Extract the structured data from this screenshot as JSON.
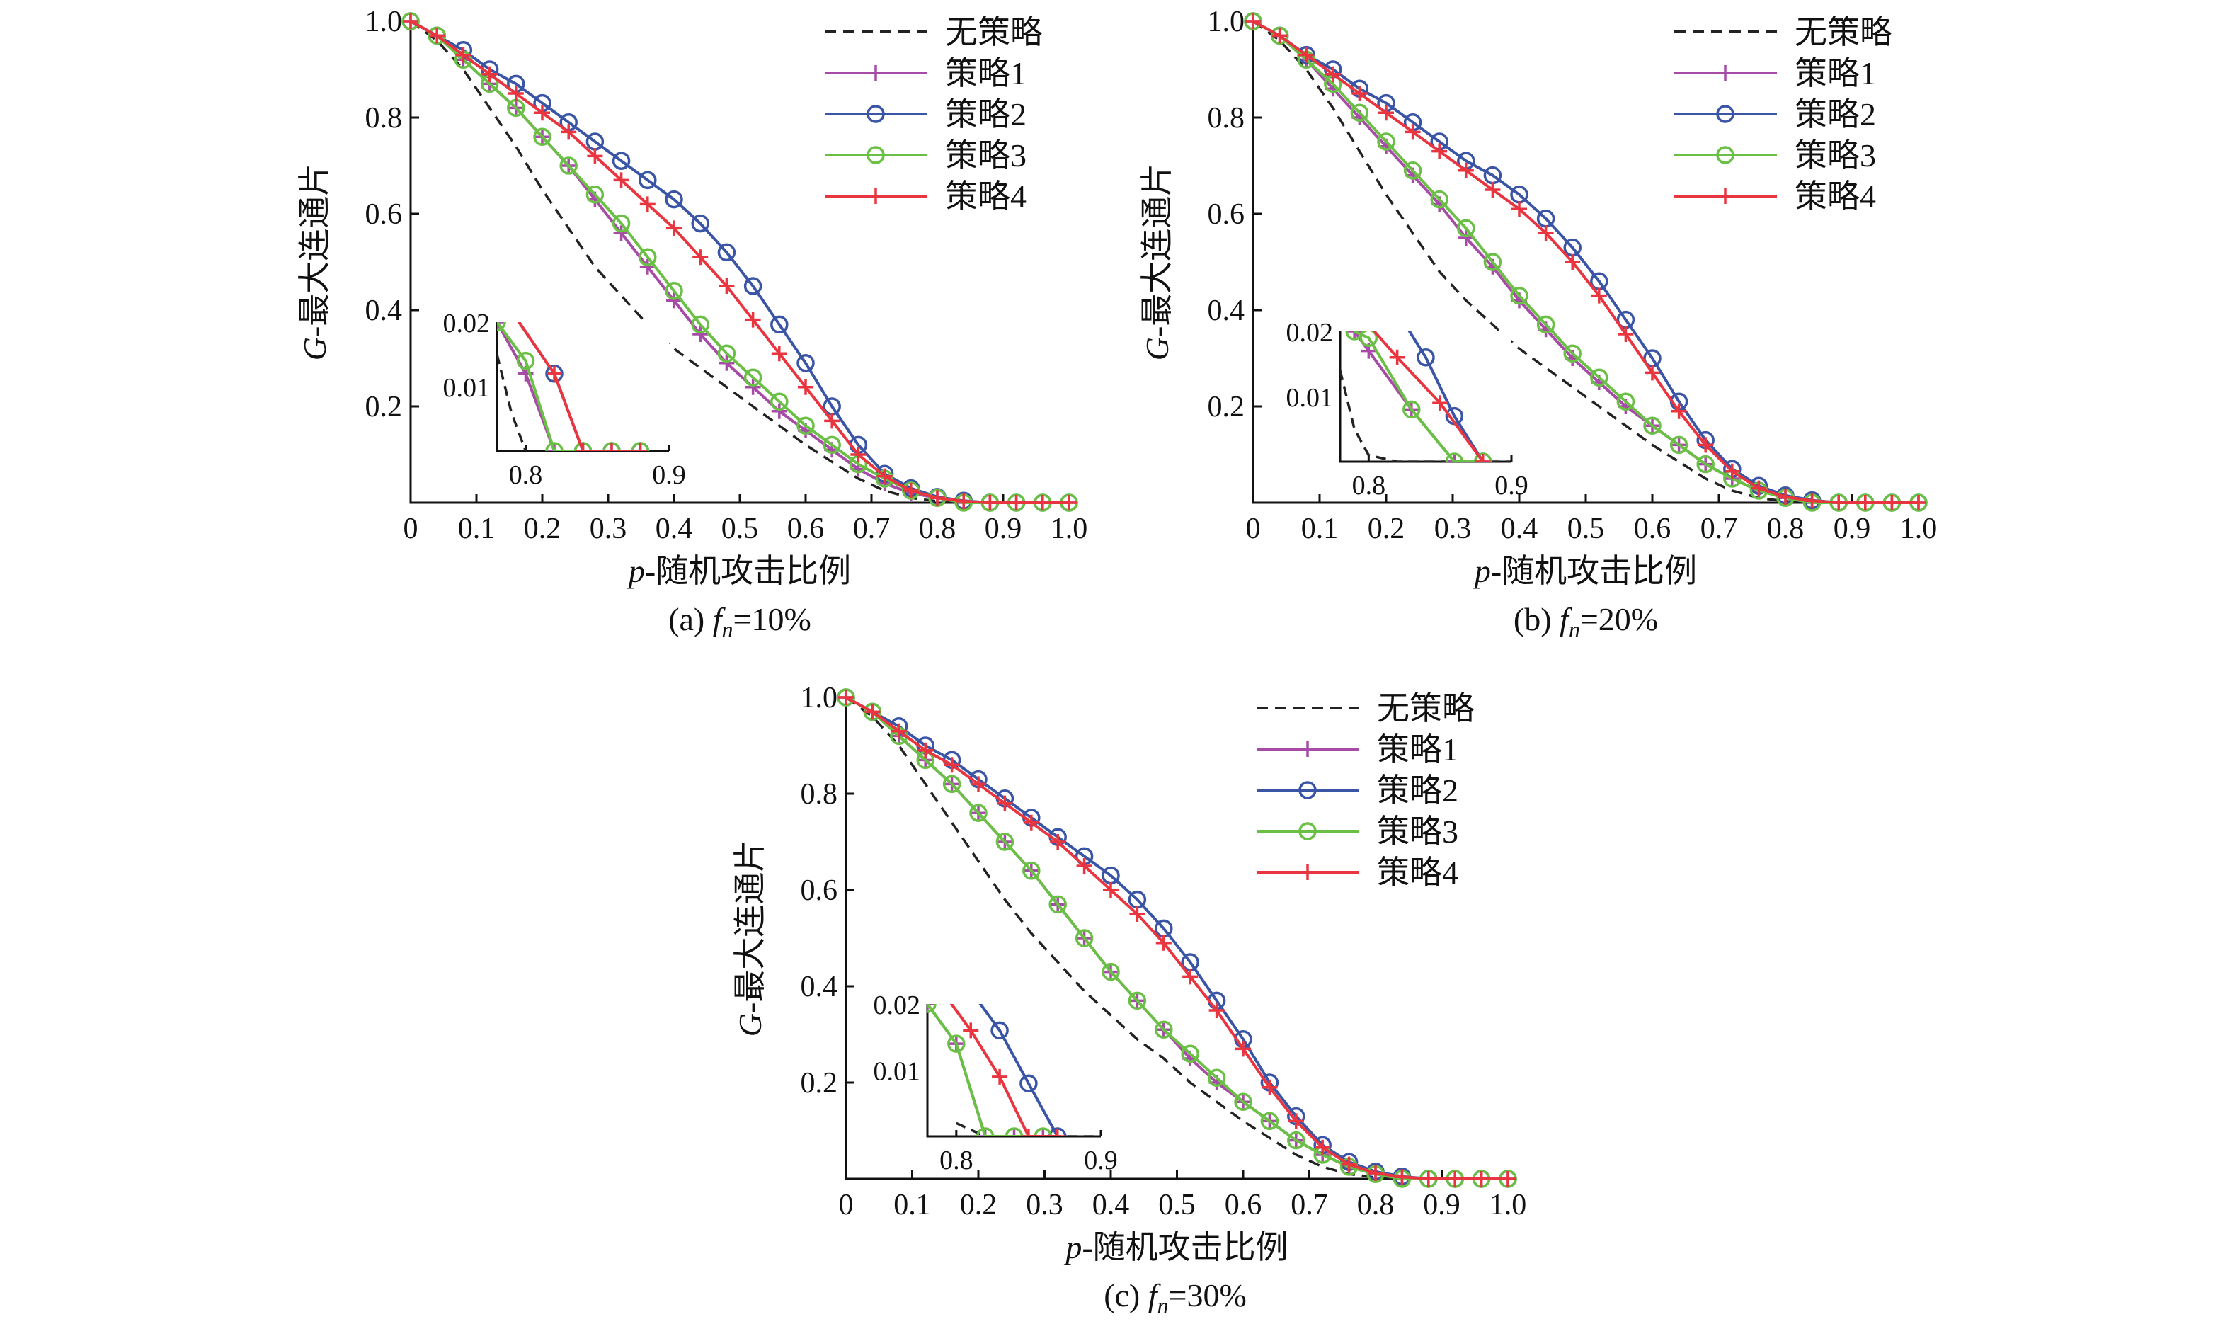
{
  "chart_data": [
    {
      "id": "a",
      "type": "line",
      "caption_prefix": "(a) ",
      "caption_f": "f",
      "caption_sub": "n",
      "caption_value": "=10%",
      "xlabel_var": "p",
      "xlabel_text": "-随机攻击比例",
      "ylabel_var": "G",
      "ylabel_text": "-最大连通片",
      "xlim": [
        0,
        1.0
      ],
      "ylim": [
        0,
        1.0
      ],
      "xticks": [
        "0",
        "0.1",
        "0.2",
        "0.3",
        "0.4",
        "0.5",
        "0.6",
        "0.7",
        "0.8",
        "0.9",
        "1.0"
      ],
      "yticks": [
        "0.2",
        "0.4",
        "0.6",
        "0.8",
        "1.0"
      ],
      "legend": [
        "无策略",
        "策略1",
        "策略2",
        "策略3",
        "策略4"
      ],
      "legend_position": "top-right",
      "x": [
        0,
        0.04,
        0.08,
        0.12,
        0.16,
        0.2,
        0.24,
        0.28,
        0.32,
        0.36,
        0.4,
        0.44,
        0.48,
        0.52,
        0.56,
        0.6,
        0.64,
        0.68,
        0.72,
        0.76,
        0.8,
        0.84,
        0.88,
        0.92,
        0.96,
        1.0
      ],
      "series": [
        {
          "name": "无策略",
          "values": [
            1.0,
            0.96,
            0.9,
            0.82,
            0.74,
            0.65,
            0.57,
            0.49,
            0.43,
            0.37,
            0.32,
            0.28,
            0.24,
            0.2,
            0.16,
            0.12,
            0.085,
            0.05,
            0.025,
            0.01,
            0.003,
            0.0,
            0.0,
            0.0,
            0.0,
            0.0
          ]
        },
        {
          "name": "策略1",
          "values": [
            1.0,
            0.97,
            0.92,
            0.87,
            0.82,
            0.76,
            0.7,
            0.63,
            0.56,
            0.49,
            0.42,
            0.35,
            0.29,
            0.24,
            0.19,
            0.15,
            0.11,
            0.07,
            0.04,
            0.02,
            0.01,
            0.0,
            0.0,
            0.0,
            0.0,
            0.0
          ]
        },
        {
          "name": "策略2",
          "values": [
            1.0,
            0.97,
            0.94,
            0.9,
            0.87,
            0.83,
            0.79,
            0.75,
            0.71,
            0.67,
            0.63,
            0.58,
            0.52,
            0.45,
            0.37,
            0.29,
            0.2,
            0.12,
            0.06,
            0.03,
            0.012,
            0.004,
            0.0,
            0.0,
            0.0,
            0.0
          ]
        },
        {
          "name": "策略3",
          "values": [
            1.0,
            0.97,
            0.92,
            0.87,
            0.82,
            0.76,
            0.7,
            0.64,
            0.58,
            0.51,
            0.44,
            0.37,
            0.31,
            0.26,
            0.21,
            0.16,
            0.12,
            0.08,
            0.05,
            0.025,
            0.01,
            0.0,
            0.0,
            0.0,
            0.0,
            0.0
          ]
        },
        {
          "name": "策略4",
          "values": [
            1.0,
            0.97,
            0.93,
            0.89,
            0.85,
            0.81,
            0.77,
            0.72,
            0.67,
            0.62,
            0.57,
            0.51,
            0.45,
            0.38,
            0.31,
            0.24,
            0.17,
            0.1,
            0.055,
            0.025,
            0.01,
            0.003,
            0.0,
            0.0,
            0.0,
            0.0
          ]
        }
      ],
      "inset": {
        "xlim": [
          0.78,
          0.9
        ],
        "ylim": [
          0.0,
          0.02
        ],
        "xticks": [
          "0.8",
          "0.9"
        ],
        "yticks": [
          "0.01",
          "0.02"
        ],
        "series": [
          {
            "name": "无策略",
            "x": [
              0.78,
              0.79,
              0.8
            ],
            "values": [
              0.015,
              0.006,
              0.0
            ]
          },
          {
            "name": "策略1",
            "x": [
              0.78,
              0.8,
              0.82,
              0.84,
              0.86,
              0.88
            ],
            "values": [
              0.02,
              0.012,
              0.0,
              0.0,
              0.0,
              0.0
            ]
          },
          {
            "name": "策略2",
            "x": [
              0.78,
              0.82,
              0.84,
              0.86,
              0.88
            ],
            "values": [
              0.025,
              0.012,
              0.0,
              0.0,
              0.0
            ]
          },
          {
            "name": "策略3",
            "x": [
              0.78,
              0.8,
              0.82,
              0.84,
              0.86,
              0.88
            ],
            "values": [
              0.02,
              0.014,
              0.0,
              0.0,
              0.0,
              0.0
            ]
          },
          {
            "name": "策略4",
            "x": [
              0.78,
              0.82,
              0.84,
              0.86,
              0.88
            ],
            "values": [
              0.025,
              0.012,
              0.0,
              0.0,
              0.0
            ]
          }
        ]
      }
    },
    {
      "id": "b",
      "type": "line",
      "caption_prefix": "(b) ",
      "caption_f": "f",
      "caption_sub": "n",
      "caption_value": "=20%",
      "xlabel_var": "p",
      "xlabel_text": "-随机攻击比例",
      "ylabel_var": "G",
      "ylabel_text": "-最大连通片",
      "xlim": [
        0,
        1.0
      ],
      "ylim": [
        0,
        1.0
      ],
      "xticks": [
        "0",
        "0.1",
        "0.2",
        "0.3",
        "0.4",
        "0.5",
        "0.6",
        "0.7",
        "0.8",
        "0.9",
        "1.0"
      ],
      "yticks": [
        "0.2",
        "0.4",
        "0.6",
        "0.8",
        "1.0"
      ],
      "legend": [
        "无策略",
        "策略1",
        "策略2",
        "策略3",
        "策略4"
      ],
      "legend_position": "top-right",
      "x": [
        0,
        0.04,
        0.08,
        0.12,
        0.16,
        0.2,
        0.24,
        0.28,
        0.32,
        0.36,
        0.4,
        0.44,
        0.48,
        0.52,
        0.56,
        0.6,
        0.64,
        0.68,
        0.72,
        0.76,
        0.8,
        0.84,
        0.88,
        0.92,
        0.96,
        1.0
      ],
      "series": [
        {
          "name": "无策略",
          "values": [
            1.0,
            0.96,
            0.9,
            0.82,
            0.73,
            0.64,
            0.56,
            0.48,
            0.42,
            0.37,
            0.32,
            0.28,
            0.24,
            0.2,
            0.16,
            0.12,
            0.085,
            0.05,
            0.025,
            0.01,
            0.003,
            0.0,
            0.0,
            0.0,
            0.0,
            0.0
          ]
        },
        {
          "name": "策略1",
          "values": [
            1.0,
            0.97,
            0.92,
            0.86,
            0.8,
            0.74,
            0.68,
            0.62,
            0.55,
            0.49,
            0.42,
            0.36,
            0.3,
            0.25,
            0.2,
            0.16,
            0.12,
            0.08,
            0.05,
            0.025,
            0.01,
            0.0,
            0.0,
            0.0,
            0.0,
            0.0
          ]
        },
        {
          "name": "策略2",
          "values": [
            1.0,
            0.97,
            0.93,
            0.9,
            0.86,
            0.83,
            0.79,
            0.75,
            0.71,
            0.68,
            0.64,
            0.59,
            0.53,
            0.46,
            0.38,
            0.3,
            0.21,
            0.13,
            0.07,
            0.035,
            0.015,
            0.005,
            0.0,
            0.0,
            0.0,
            0.0
          ]
        },
        {
          "name": "策略3",
          "values": [
            1.0,
            0.97,
            0.92,
            0.87,
            0.81,
            0.75,
            0.69,
            0.63,
            0.57,
            0.5,
            0.43,
            0.37,
            0.31,
            0.26,
            0.21,
            0.16,
            0.12,
            0.08,
            0.05,
            0.025,
            0.01,
            0.0,
            0.0,
            0.0,
            0.0,
            0.0
          ]
        },
        {
          "name": "策略4",
          "values": [
            1.0,
            0.97,
            0.93,
            0.89,
            0.85,
            0.81,
            0.77,
            0.73,
            0.69,
            0.65,
            0.61,
            0.56,
            0.5,
            0.43,
            0.35,
            0.27,
            0.19,
            0.12,
            0.065,
            0.03,
            0.012,
            0.004,
            0.0,
            0.0,
            0.0,
            0.0
          ]
        }
      ],
      "inset": {
        "xlim": [
          0.78,
          0.9
        ],
        "ylim": [
          0.0,
          0.02
        ],
        "xticks": [
          "0.8",
          "0.9"
        ],
        "yticks": [
          "0.01",
          "0.02"
        ],
        "series": [
          {
            "name": "无策略",
            "x": [
              0.78,
              0.79,
              0.8,
              0.82,
              0.9
            ],
            "values": [
              0.014,
              0.005,
              0.001,
              0.0,
              0.0
            ]
          },
          {
            "name": "策略1",
            "x": [
              0.79,
              0.8,
              0.83,
              0.86,
              0.88
            ],
            "values": [
              0.02,
              0.017,
              0.008,
              0.0,
              0.0
            ]
          },
          {
            "name": "策略2",
            "x": [
              0.82,
              0.84,
              0.86,
              0.88
            ],
            "values": [
              0.023,
              0.016,
              0.007,
              0.0
            ]
          },
          {
            "name": "策略3",
            "x": [
              0.79,
              0.8,
              0.83,
              0.86,
              0.88
            ],
            "values": [
              0.02,
              0.019,
              0.008,
              0.0,
              0.0
            ]
          },
          {
            "name": "策略4",
            "x": [
              0.8,
              0.82,
              0.85,
              0.88
            ],
            "values": [
              0.021,
              0.016,
              0.009,
              0.0
            ]
          }
        ]
      }
    },
    {
      "id": "c",
      "type": "line",
      "caption_prefix": "(c) ",
      "caption_f": "f",
      "caption_sub": "n",
      "caption_value": "=30%",
      "xlabel_var": "p",
      "xlabel_text": "-随机攻击比例",
      "ylabel_var": "G",
      "ylabel_text": "-最大连通片",
      "xlim": [
        0,
        1.0
      ],
      "ylim": [
        0,
        1.0
      ],
      "xticks": [
        "0",
        "0.1",
        "0.2",
        "0.3",
        "0.4",
        "0.5",
        "0.6",
        "0.7",
        "0.8",
        "0.9",
        "1.0"
      ],
      "yticks": [
        "0.2",
        "0.4",
        "0.6",
        "0.8",
        "1.0"
      ],
      "legend": [
        "无策略",
        "策略1",
        "策略2",
        "策略3",
        "策略4"
      ],
      "legend_position": "top-right",
      "x": [
        0,
        0.04,
        0.08,
        0.12,
        0.16,
        0.2,
        0.24,
        0.28,
        0.32,
        0.36,
        0.4,
        0.44,
        0.48,
        0.52,
        0.56,
        0.6,
        0.64,
        0.68,
        0.72,
        0.76,
        0.8,
        0.84,
        0.88,
        0.92,
        0.96,
        1.0
      ],
      "series": [
        {
          "name": "无策略",
          "values": [
            1.0,
            0.96,
            0.9,
            0.82,
            0.74,
            0.66,
            0.58,
            0.51,
            0.45,
            0.39,
            0.34,
            0.29,
            0.25,
            0.2,
            0.16,
            0.12,
            0.085,
            0.05,
            0.025,
            0.01,
            0.003,
            0.0,
            0.0,
            0.0,
            0.0,
            0.0
          ]
        },
        {
          "name": "策略1",
          "values": [
            1.0,
            0.97,
            0.92,
            0.87,
            0.82,
            0.76,
            0.7,
            0.64,
            0.57,
            0.5,
            0.43,
            0.37,
            0.31,
            0.25,
            0.2,
            0.16,
            0.12,
            0.08,
            0.05,
            0.025,
            0.01,
            0.0,
            0.0,
            0.0,
            0.0,
            0.0
          ]
        },
        {
          "name": "策略2",
          "values": [
            1.0,
            0.97,
            0.94,
            0.9,
            0.87,
            0.83,
            0.79,
            0.75,
            0.71,
            0.67,
            0.63,
            0.58,
            0.52,
            0.45,
            0.37,
            0.29,
            0.2,
            0.13,
            0.07,
            0.035,
            0.015,
            0.005,
            0.0,
            0.0,
            0.0,
            0.0
          ]
        },
        {
          "name": "策略3",
          "values": [
            1.0,
            0.97,
            0.92,
            0.87,
            0.82,
            0.76,
            0.7,
            0.64,
            0.57,
            0.5,
            0.43,
            0.37,
            0.31,
            0.26,
            0.21,
            0.16,
            0.12,
            0.08,
            0.05,
            0.025,
            0.01,
            0.0,
            0.0,
            0.0,
            0.0,
            0.0
          ]
        },
        {
          "name": "策略4",
          "values": [
            1.0,
            0.97,
            0.93,
            0.89,
            0.86,
            0.82,
            0.78,
            0.74,
            0.7,
            0.65,
            0.6,
            0.55,
            0.49,
            0.42,
            0.35,
            0.27,
            0.19,
            0.12,
            0.065,
            0.03,
            0.012,
            0.004,
            0.0,
            0.0,
            0.0,
            0.0
          ]
        }
      ],
      "inset": {
        "xlim": [
          0.78,
          0.9
        ],
        "ylim": [
          0.0,
          0.02
        ],
        "xticks": [
          "0.8",
          "0.9"
        ],
        "yticks": [
          "0.01",
          "0.02"
        ],
        "series": [
          {
            "name": "无策略",
            "x": [
              0.8,
              0.82,
              0.9
            ],
            "values": [
              0.002,
              0.0,
              0.0
            ]
          },
          {
            "name": "策略1",
            "x": [
              0.78,
              0.8,
              0.82,
              0.84,
              0.86
            ],
            "values": [
              0.02,
              0.014,
              0.0,
              0.0,
              0.0
            ]
          },
          {
            "name": "策略2",
            "x": [
              0.81,
              0.83,
              0.85,
              0.87
            ],
            "values": [
              0.022,
              0.016,
              0.008,
              0.0
            ]
          },
          {
            "name": "策略3",
            "x": [
              0.78,
              0.8,
              0.82,
              0.84,
              0.86
            ],
            "values": [
              0.02,
              0.014,
              0.0,
              0.0,
              0.0
            ]
          },
          {
            "name": "策略4",
            "x": [
              0.79,
              0.81,
              0.83,
              0.85,
              0.87
            ],
            "values": [
              0.022,
              0.016,
              0.009,
              0.0,
              0.0
            ]
          }
        ]
      }
    }
  ],
  "colors": {
    "无策略": "#222222",
    "策略1": "#a64ca6",
    "策略2": "#3b55a6",
    "策略3": "#6abf45",
    "策略4": "#e8353f"
  },
  "markers": {
    "无策略": "none",
    "策略1": "plus",
    "策略2": "circle",
    "策略3": "circle",
    "策略4": "plus"
  }
}
